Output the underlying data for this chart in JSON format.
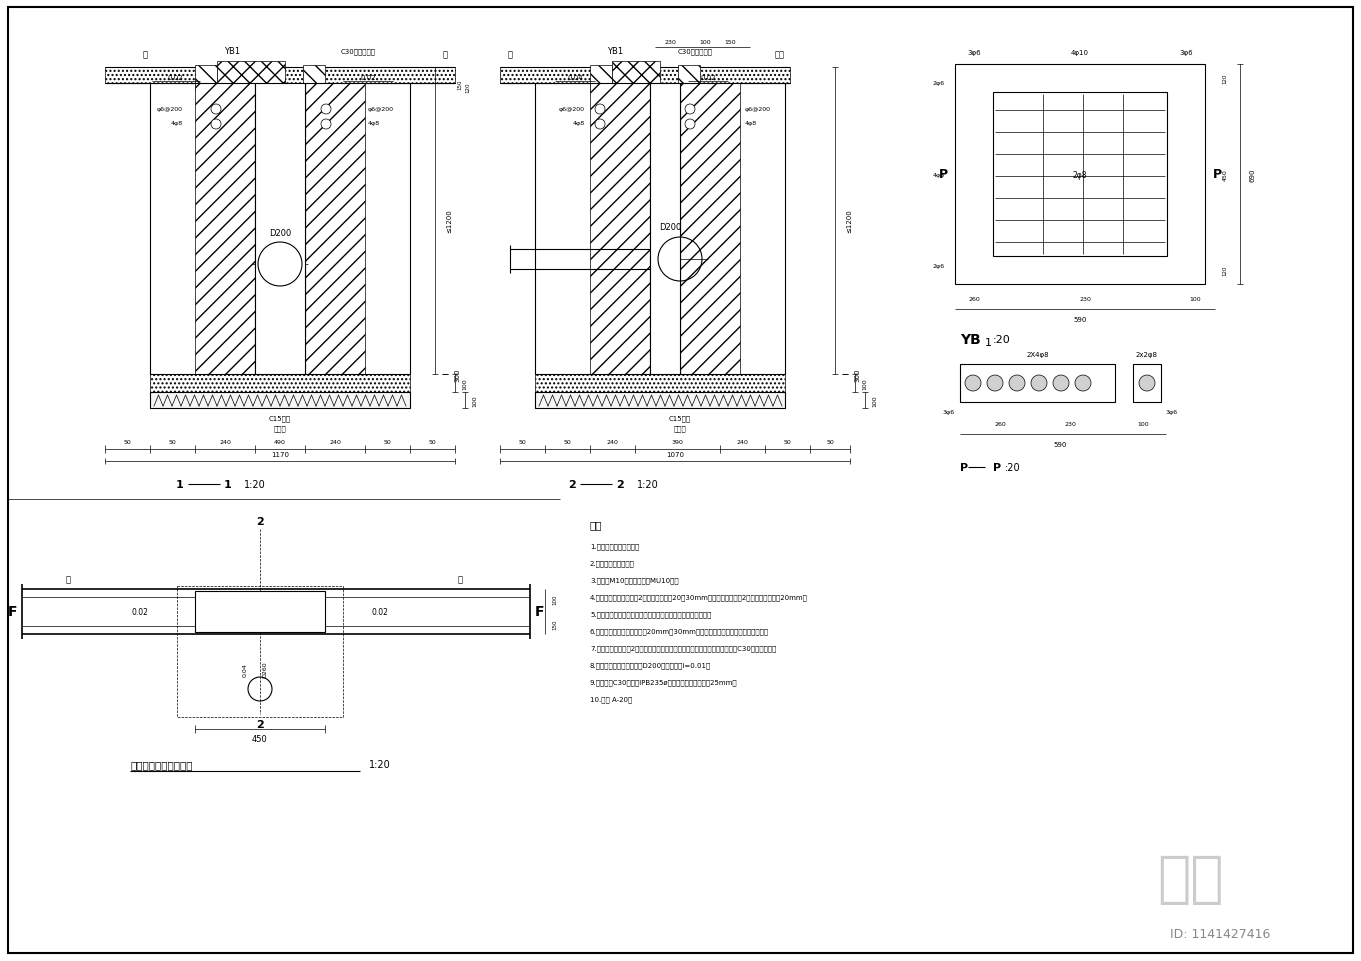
{
  "bg_color": "#ffffff",
  "line_color": "#000000",
  "title": "单诹式雨水井口平面图",
  "note_title": "说明",
  "notes": [
    "1.本图尺寸单位为毫米。",
    "2.本图适用于路颜水。",
    "3.井壁用M10水泥砂浆砌筑MU10砌。",
    "4.井、梦底板供混凝土：2层水泥層，厚度20～30mm，内等外据共面＝2层水泥砂浆，厚度20mm。",
    "5.本图雨水井口利用子张子掌管道连接雨水管道展出光电音颜。",
    "6.井室内定流向面格间距录为20mm～30mm，并与雨水管道平整和正，则为连接。",
    "7.展层底面，层底＝2层水泥砂浆。据底与内底，平底与内底，則为卫生水井C30混凝土展层。",
    "8.雨水流入山，进水口内径D200单位，否则i=0.01。",
    "9.梦底采用C30，钢筋IPB235ø，火束之锁傳面不小于25mm。",
    "10.详图 A-20。"
  ]
}
